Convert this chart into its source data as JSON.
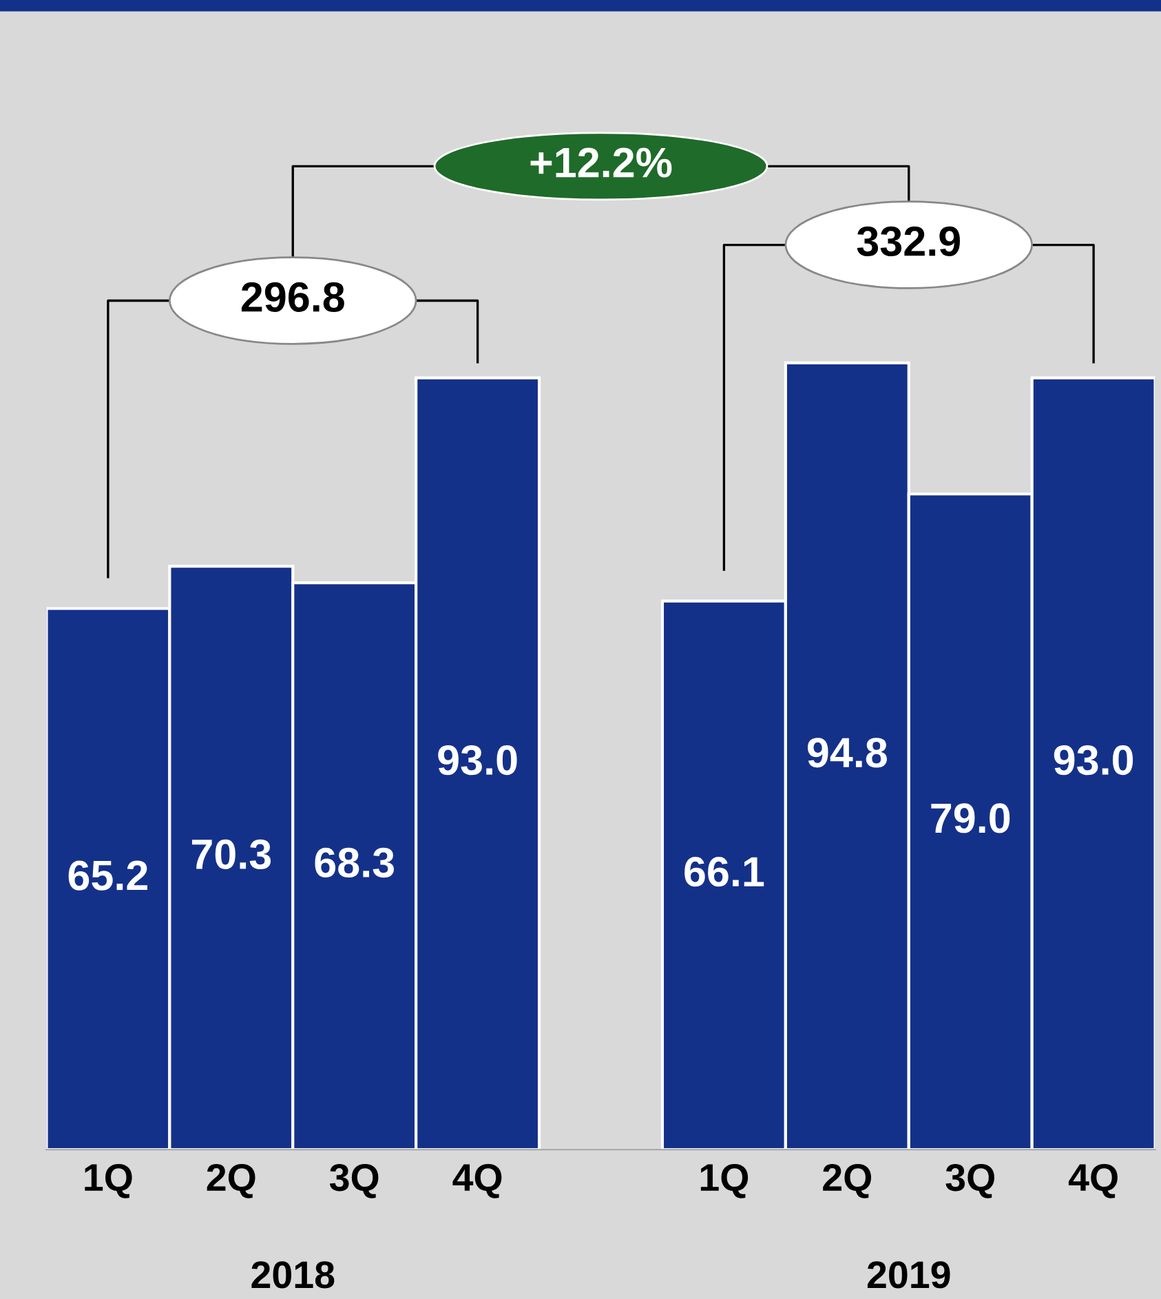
{
  "chart_data": {
    "type": "bar",
    "categories": [
      "1Q",
      "2Q",
      "3Q",
      "4Q",
      null,
      "1Q",
      "2Q",
      "3Q",
      "4Q"
    ],
    "values": [
      65.2,
      70.3,
      68.3,
      93.0,
      null,
      66.1,
      94.8,
      79.0,
      93.0
    ],
    "value_labels": [
      "65.2",
      "70.3",
      "68.3",
      "93.0",
      null,
      "66.1",
      "94.8",
      "79.0",
      "93.0"
    ],
    "color": "#14318a",
    "grid": false,
    "annotations": [
      "2018",
      "2019",
      "296.8",
      "332.9",
      "+12.2%"
    ]
  }
}
